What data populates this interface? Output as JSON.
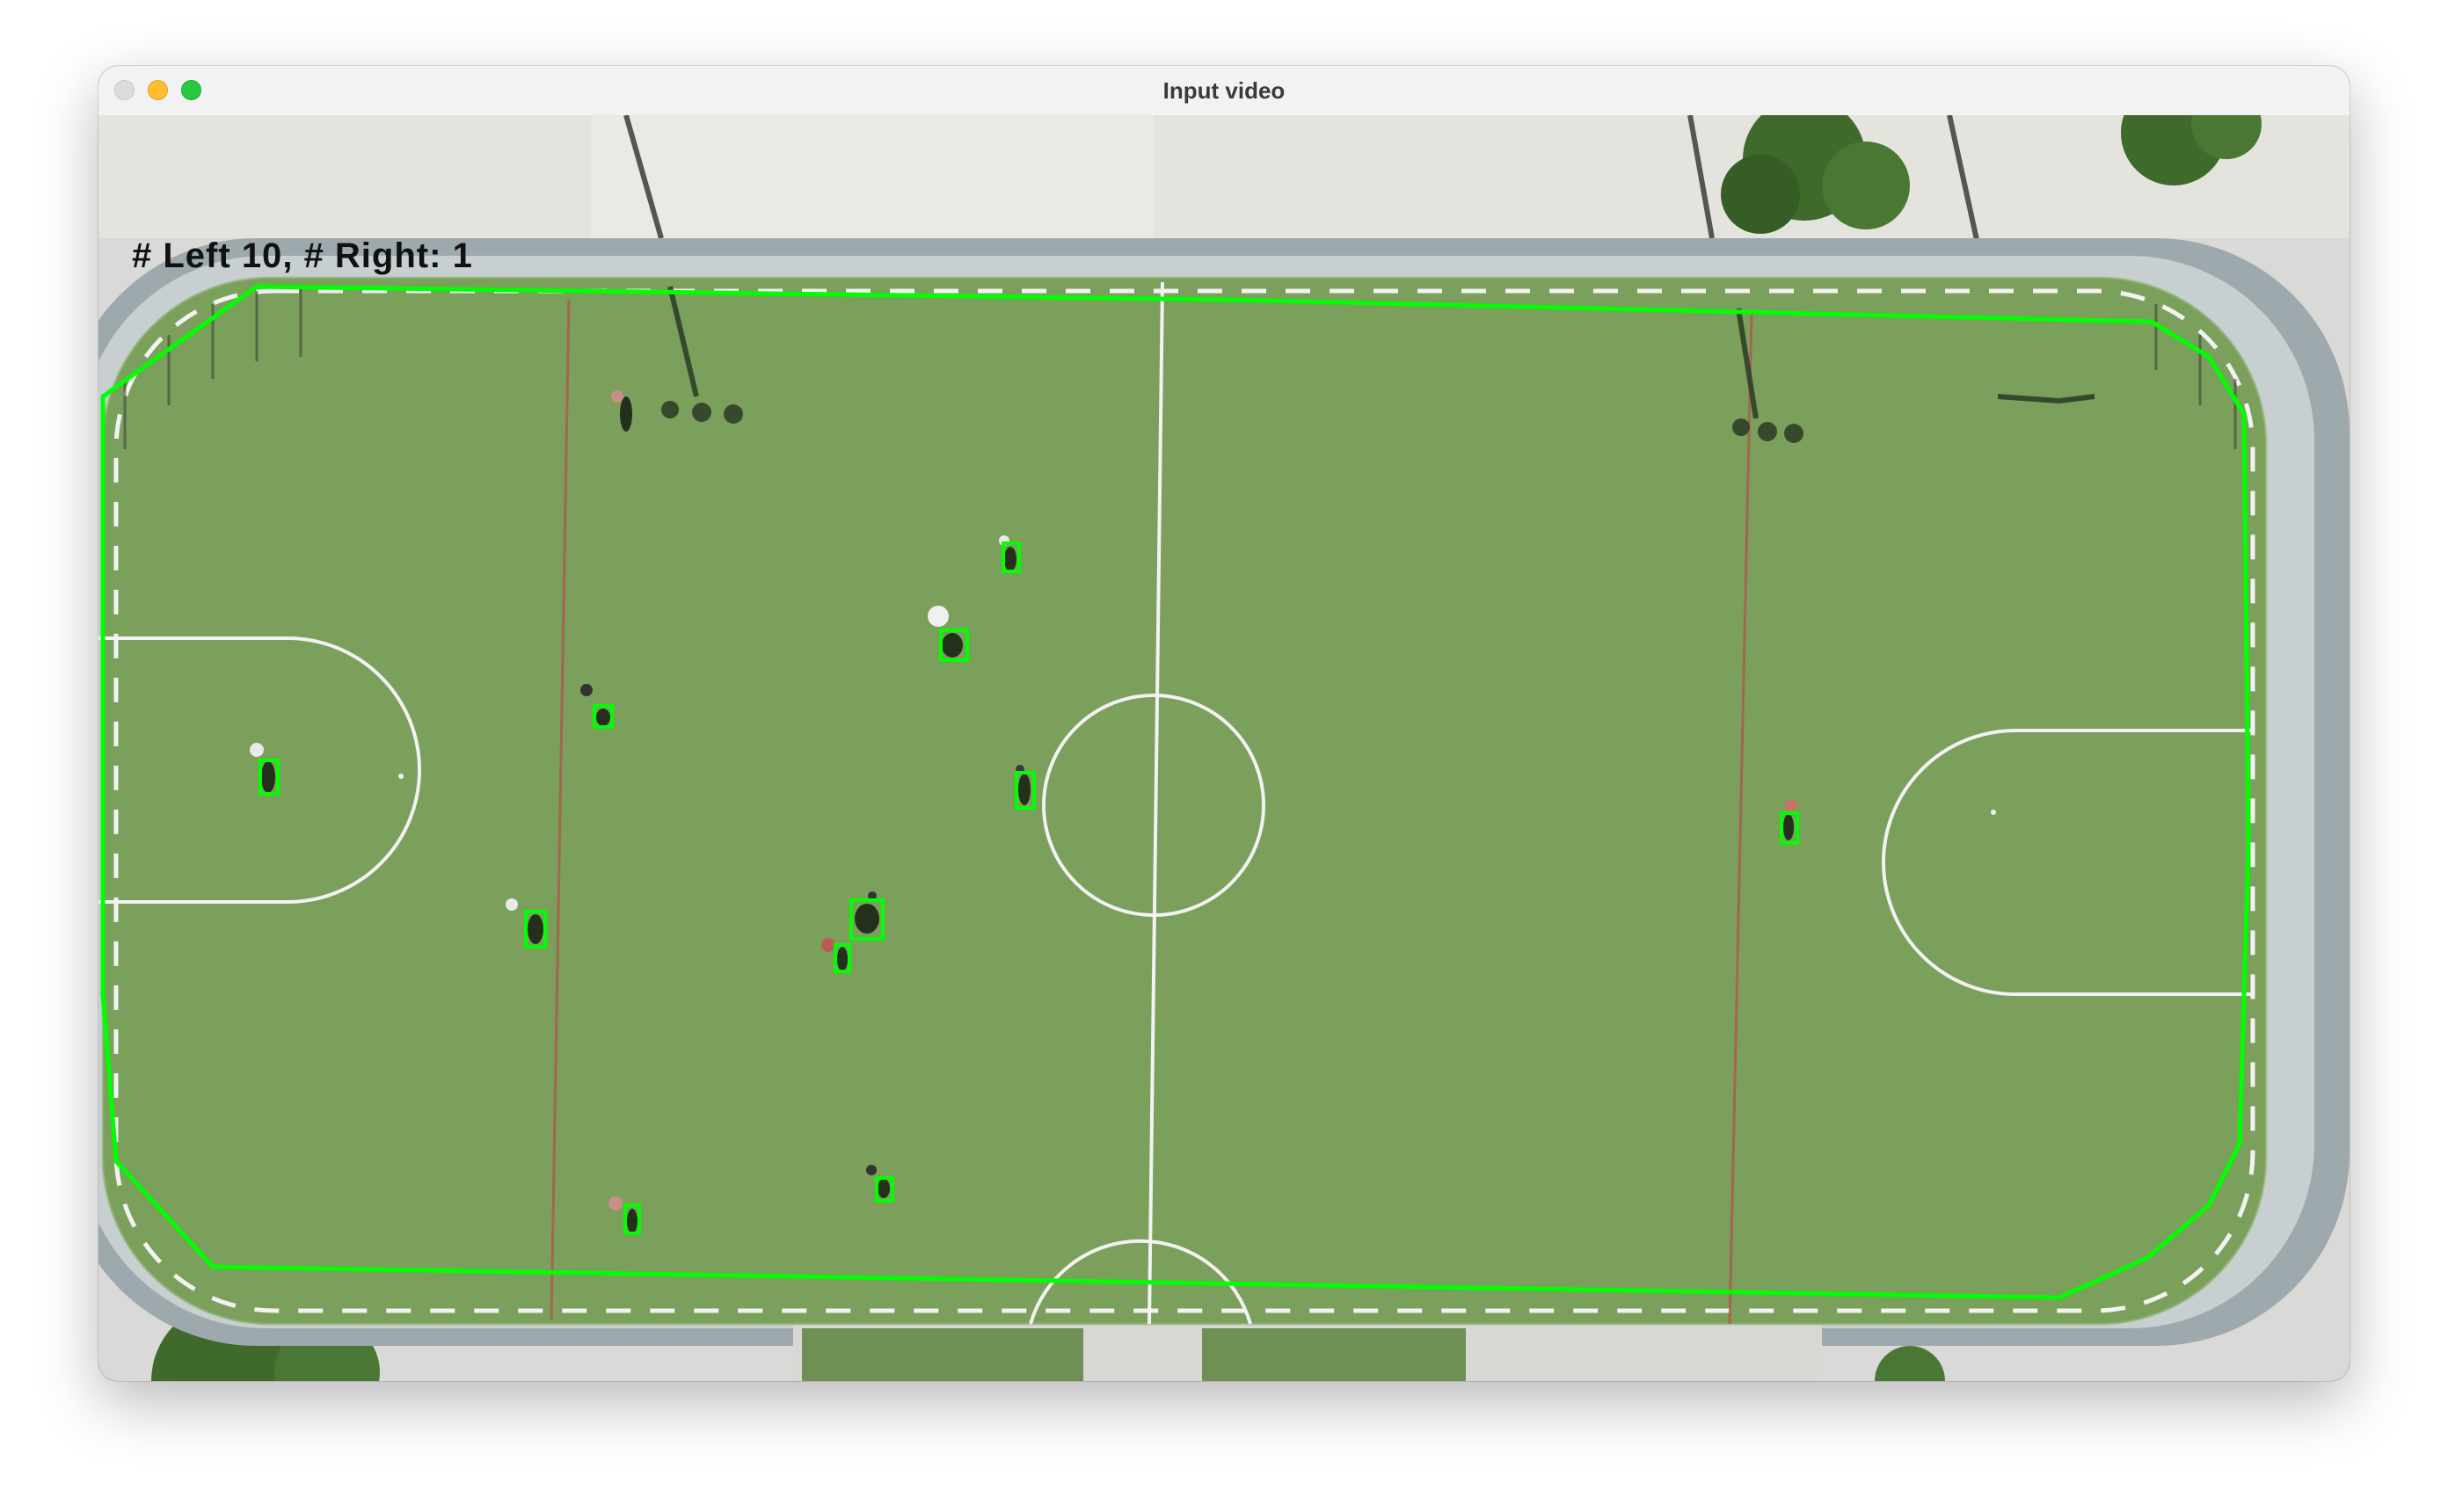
{
  "window": {
    "title": "Input video"
  },
  "overlay": {
    "left_label": "# Left",
    "left_count": "10",
    "right_label": "# Right:",
    "right_count": "1"
  },
  "colors": {
    "detection": "#00ff00",
    "field": "#7aa05c",
    "lines": "#f2f2f2"
  }
}
